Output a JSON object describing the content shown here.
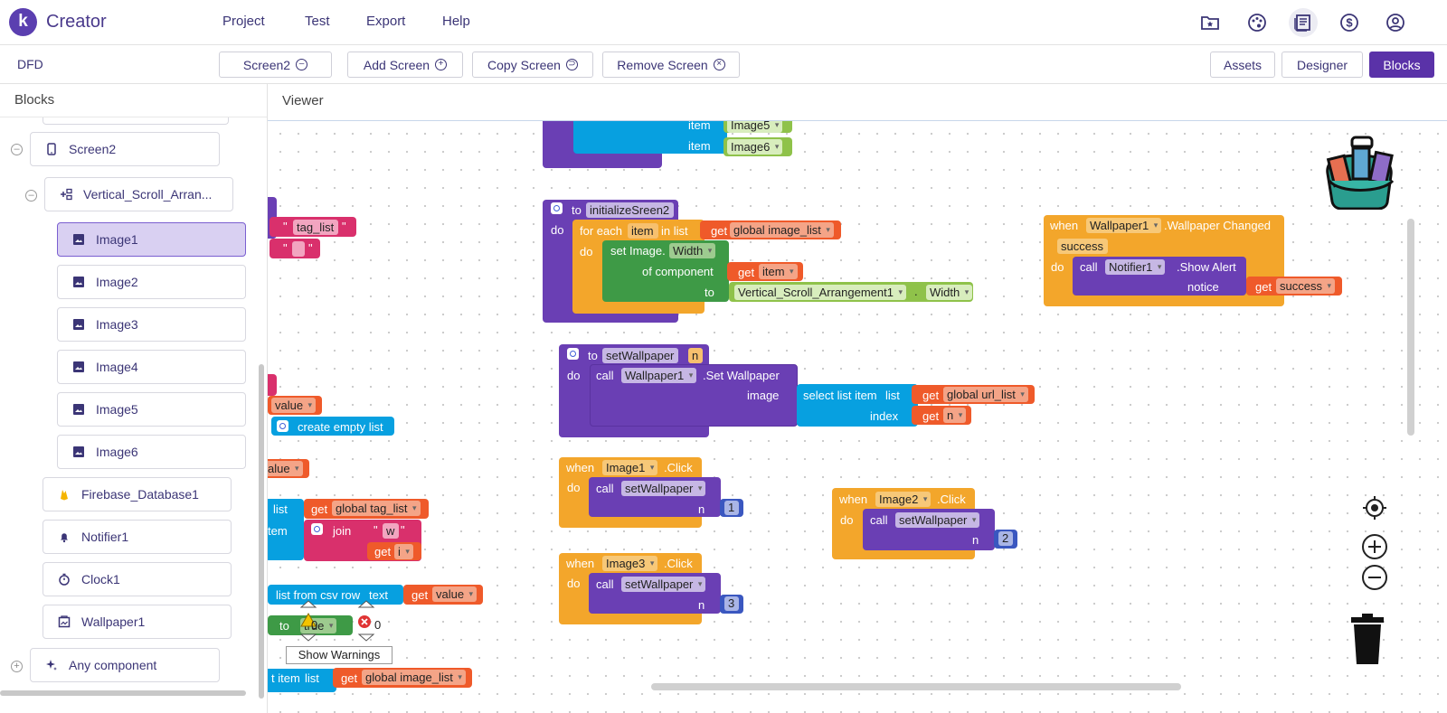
{
  "app": {
    "brand": "Creator",
    "logo_letter": "k",
    "menu": [
      "Project",
      "Test",
      "Export",
      "Help"
    ],
    "icons": [
      "folder-star-icon",
      "palette-icon",
      "book-icon",
      "dollar-icon",
      "account-icon"
    ]
  },
  "toolbar": {
    "project_name": "DFD",
    "screen_select": "Screen2",
    "add_screen": "Add Screen",
    "copy_screen": "Copy Screen",
    "remove_screen": "Remove Screen",
    "assets": "Assets",
    "designer": "Designer",
    "blocks": "Blocks"
  },
  "sidebar": {
    "title": "Blocks",
    "screen": "Screen2",
    "arrangement": "Vertical_Scroll_Arran...",
    "images": [
      "Image1",
      "Image2",
      "Image3",
      "Image4",
      "Image5",
      "Image6"
    ],
    "components": [
      "Firebase_Database1",
      "Notifier1",
      "Clock1",
      "Wallpaper1"
    ],
    "any_component": "Any component"
  },
  "viewer": {
    "title": "Viewer",
    "show_warnings": "Show Warnings",
    "warning_count": "0",
    "error_count": "0"
  },
  "blocks": {
    "item": "item",
    "image5": "Image5",
    "image6": "Image6",
    "to": "to",
    "initialize": "initializeSreen2",
    "do": "do",
    "for_each": "for each",
    "in_list": "in list",
    "get": "get",
    "global_image_list": "global image_list",
    "set_image": "set Image.",
    "width": "Width",
    "of_component": "of component",
    "vsa1": "Vertical_Scroll_Arrangement1",
    "dot": ".",
    "set_wallpaper_proc": "setWallpaper",
    "n": "n",
    "call": "call",
    "wallpaper1": "Wallpaper1",
    "set_wallpaper_method": ".Set Wallpaper",
    "image": "image",
    "select_list_item": "select list item",
    "list": "list",
    "global_url_list": "global url_list",
    "index": "index",
    "when": "when",
    "wallpaper_changed": ".Wallpaper Changed",
    "success": "success",
    "notifier1": "Notifier1",
    "show_alert": ".Show Alert",
    "notice": "notice",
    "image1": "Image1",
    "image2": "Image2",
    "image3": "Image3",
    "click": ".Click",
    "num1": "1",
    "num2": "2",
    "num3": "3",
    "tag_list_str": "tag_list",
    "value": "value",
    "create_empty_list": "create empty list",
    "global_tag_list": "global tag_list",
    "join": "join",
    "w_str": "w",
    "i": "i",
    "list_from_csv": "list from csv row",
    "text": "text",
    "true": "true",
    "t_item": "t item",
    "tem": "tem",
    "alue": "alue",
    "quote": "\""
  }
}
